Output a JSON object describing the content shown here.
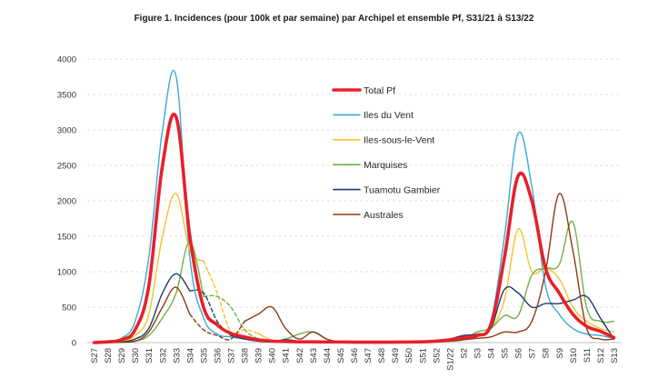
{
  "chart_data": {
    "type": "line",
    "title": "Figure 1. Incidences (pour 100k et par semaine) par Archipel et ensemble Pf, S31/21 à S13/22",
    "xlabel": "",
    "ylabel": "",
    "ylim": [
      0,
      4000
    ],
    "yticks": [
      0,
      500,
      1000,
      1500,
      2000,
      2500,
      3000,
      3500,
      4000
    ],
    "grid": true,
    "legend_position": "top-center",
    "categories": [
      "S27",
      "S28",
      "S29",
      "S30",
      "S31",
      "S32",
      "S33",
      "S34",
      "S35",
      "S36",
      "S37",
      "S38",
      "S39",
      "S40",
      "S41",
      "S42",
      "S43",
      "S44",
      "S45",
      "S46",
      "S47",
      "S48",
      "S49",
      "S50",
      "S51",
      "S52",
      "S1/22",
      "S2",
      "S3",
      "S4",
      "S5",
      "S6",
      "S7",
      "S8",
      "S9",
      "S10",
      "S11",
      "S12",
      "S13"
    ],
    "series": [
      {
        "name": "Total Pf",
        "color": "#e8202a",
        "width": 3.6,
        "values": [
          0,
          10,
          40,
          180,
          800,
          2500,
          3180,
          1500,
          500,
          250,
          130,
          80,
          40,
          20,
          15,
          10,
          10,
          8,
          8,
          6,
          6,
          6,
          6,
          8,
          10,
          20,
          40,
          70,
          100,
          250,
          1200,
          2350,
          2000,
          1050,
          700,
          400,
          230,
          160,
          70
        ]
      },
      {
        "name": "Iles du Vent",
        "color": "#3aa8d8",
        "width": 1.4,
        "values": [
          0,
          15,
          60,
          300,
          1200,
          3000,
          3750,
          1200,
          350,
          120,
          80,
          50,
          20,
          10,
          10,
          8,
          8,
          6,
          6,
          5,
          5,
          5,
          5,
          6,
          8,
          15,
          30,
          60,
          90,
          300,
          1500,
          2950,
          2200,
          800,
          400,
          200,
          120,
          100,
          60
        ]
      },
      {
        "name": "Iles-sous-le-Vent",
        "color": "#f5c02c",
        "width": 1.4,
        "dashed_segment": [
          8,
          12
        ],
        "values": [
          0,
          5,
          20,
          100,
          400,
          1500,
          2100,
          1300,
          1150,
          700,
          150,
          180,
          130,
          30,
          10,
          5,
          5,
          5,
          5,
          5,
          5,
          5,
          5,
          5,
          5,
          10,
          30,
          50,
          80,
          200,
          600,
          1600,
          1000,
          1050,
          900,
          500,
          300,
          200,
          150
        ]
      },
      {
        "name": "Marquises",
        "color": "#72b043",
        "width": 1.4,
        "dashed_segment": [
          8,
          12
        ],
        "values": [
          0,
          0,
          0,
          20,
          100,
          350,
          700,
          1420,
          650,
          650,
          500,
          180,
          50,
          20,
          50,
          120,
          150,
          50,
          10,
          10,
          10,
          10,
          10,
          10,
          10,
          10,
          20,
          40,
          150,
          200,
          380,
          380,
          950,
          1050,
          1100,
          1700,
          500,
          300,
          300
        ]
      },
      {
        "name": "Tuamotu Gambier",
        "color": "#1f3a6b",
        "width": 1.4,
        "dashed_segment": [
          7,
          10
        ],
        "values": [
          0,
          0,
          10,
          50,
          200,
          700,
          970,
          730,
          700,
          300,
          100,
          50,
          20,
          10,
          40,
          20,
          20,
          10,
          10,
          10,
          10,
          10,
          10,
          10,
          10,
          20,
          50,
          100,
          120,
          200,
          750,
          700,
          500,
          550,
          550,
          600,
          650,
          350,
          50
        ]
      },
      {
        "name": "Australes",
        "color": "#8b3a14",
        "width": 1.4,
        "dashed_segment": [
          7,
          11
        ],
        "values": [
          0,
          0,
          10,
          20,
          150,
          500,
          780,
          400,
          180,
          100,
          50,
          300,
          400,
          500,
          200,
          50,
          150,
          50,
          10,
          10,
          10,
          10,
          10,
          10,
          10,
          10,
          20,
          40,
          60,
          80,
          150,
          150,
          300,
          1000,
          2100,
          1300,
          200,
          50,
          50
        ]
      }
    ]
  }
}
